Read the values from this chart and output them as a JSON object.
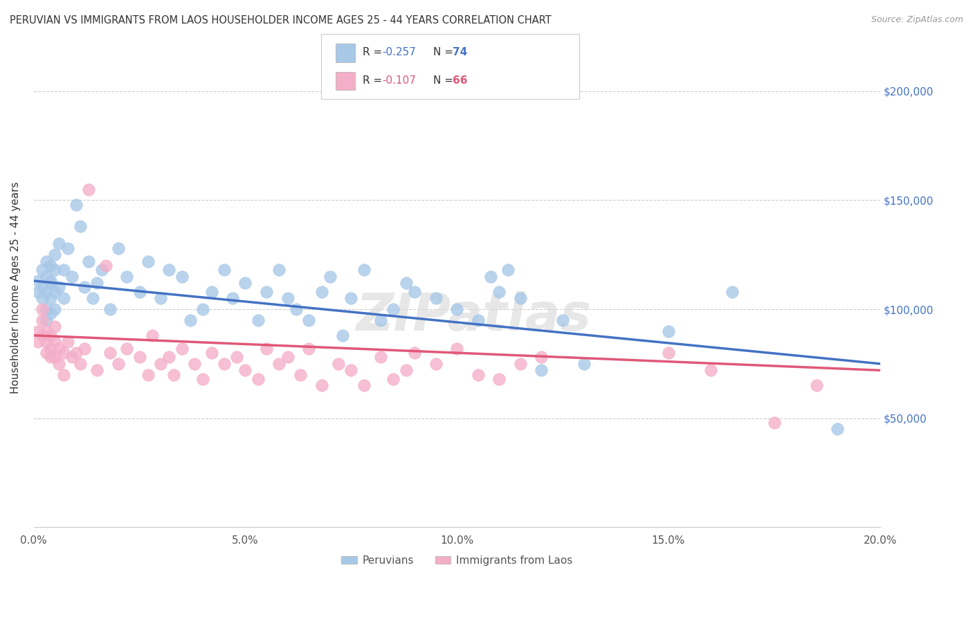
{
  "title": "PERUVIAN VS IMMIGRANTS FROM LAOS HOUSEHOLDER INCOME AGES 25 - 44 YEARS CORRELATION CHART",
  "source": "Source: ZipAtlas.com",
  "ylabel": "Householder Income Ages 25 - 44 years",
  "xlim": [
    0.0,
    0.2
  ],
  "ylim": [
    0,
    220000
  ],
  "blue_color": "#a8c8e8",
  "pink_color": "#f4afc8",
  "blue_line_color": "#4472c4",
  "pink_line_color": "#e05878",
  "legend_label1": "Peruvians",
  "legend_label2": "Immigrants from Laos",
  "watermark": "ZIPatlas",
  "blue_x": [
    0.001,
    0.001,
    0.002,
    0.002,
    0.002,
    0.003,
    0.003,
    0.003,
    0.003,
    0.003,
    0.004,
    0.004,
    0.004,
    0.004,
    0.004,
    0.005,
    0.005,
    0.005,
    0.005,
    0.006,
    0.006,
    0.007,
    0.007,
    0.008,
    0.009,
    0.01,
    0.011,
    0.012,
    0.013,
    0.014,
    0.015,
    0.016,
    0.018,
    0.02,
    0.022,
    0.025,
    0.027,
    0.03,
    0.032,
    0.035,
    0.037,
    0.04,
    0.042,
    0.045,
    0.047,
    0.05,
    0.053,
    0.055,
    0.058,
    0.06,
    0.062,
    0.065,
    0.068,
    0.07,
    0.073,
    0.075,
    0.078,
    0.082,
    0.085,
    0.088,
    0.09,
    0.095,
    0.1,
    0.105,
    0.108,
    0.11,
    0.112,
    0.115,
    0.12,
    0.125,
    0.13,
    0.15,
    0.165,
    0.19
  ],
  "blue_y": [
    113000,
    108000,
    118000,
    110000,
    105000,
    115000,
    122000,
    108000,
    100000,
    95000,
    120000,
    113000,
    105000,
    98000,
    112000,
    125000,
    118000,
    108000,
    100000,
    130000,
    110000,
    118000,
    105000,
    128000,
    115000,
    148000,
    138000,
    110000,
    122000,
    105000,
    112000,
    118000,
    100000,
    128000,
    115000,
    108000,
    122000,
    105000,
    118000,
    115000,
    95000,
    100000,
    108000,
    118000,
    105000,
    112000,
    95000,
    108000,
    118000,
    105000,
    100000,
    95000,
    108000,
    115000,
    88000,
    105000,
    118000,
    95000,
    100000,
    112000,
    108000,
    105000,
    100000,
    95000,
    115000,
    108000,
    118000,
    105000,
    72000,
    95000,
    75000,
    90000,
    108000,
    45000
  ],
  "pink_x": [
    0.001,
    0.001,
    0.002,
    0.002,
    0.002,
    0.003,
    0.003,
    0.003,
    0.004,
    0.004,
    0.004,
    0.005,
    0.005,
    0.005,
    0.006,
    0.006,
    0.007,
    0.007,
    0.008,
    0.009,
    0.01,
    0.011,
    0.012,
    0.013,
    0.015,
    0.017,
    0.018,
    0.02,
    0.022,
    0.025,
    0.027,
    0.028,
    0.03,
    0.032,
    0.033,
    0.035,
    0.038,
    0.04,
    0.042,
    0.045,
    0.048,
    0.05,
    0.053,
    0.055,
    0.058,
    0.06,
    0.063,
    0.065,
    0.068,
    0.072,
    0.075,
    0.078,
    0.082,
    0.085,
    0.088,
    0.09,
    0.095,
    0.1,
    0.105,
    0.11,
    0.115,
    0.12,
    0.15,
    0.16,
    0.175,
    0.185
  ],
  "pink_y": [
    90000,
    85000,
    95000,
    88000,
    100000,
    85000,
    90000,
    80000,
    88000,
    78000,
    82000,
    92000,
    78000,
    85000,
    75000,
    82000,
    80000,
    70000,
    85000,
    78000,
    80000,
    75000,
    82000,
    155000,
    72000,
    120000,
    80000,
    75000,
    82000,
    78000,
    70000,
    88000,
    75000,
    78000,
    70000,
    82000,
    75000,
    68000,
    80000,
    75000,
    78000,
    72000,
    68000,
    82000,
    75000,
    78000,
    70000,
    82000,
    65000,
    75000,
    72000,
    65000,
    78000,
    68000,
    72000,
    80000,
    75000,
    82000,
    70000,
    68000,
    75000,
    78000,
    80000,
    72000,
    48000,
    65000
  ]
}
